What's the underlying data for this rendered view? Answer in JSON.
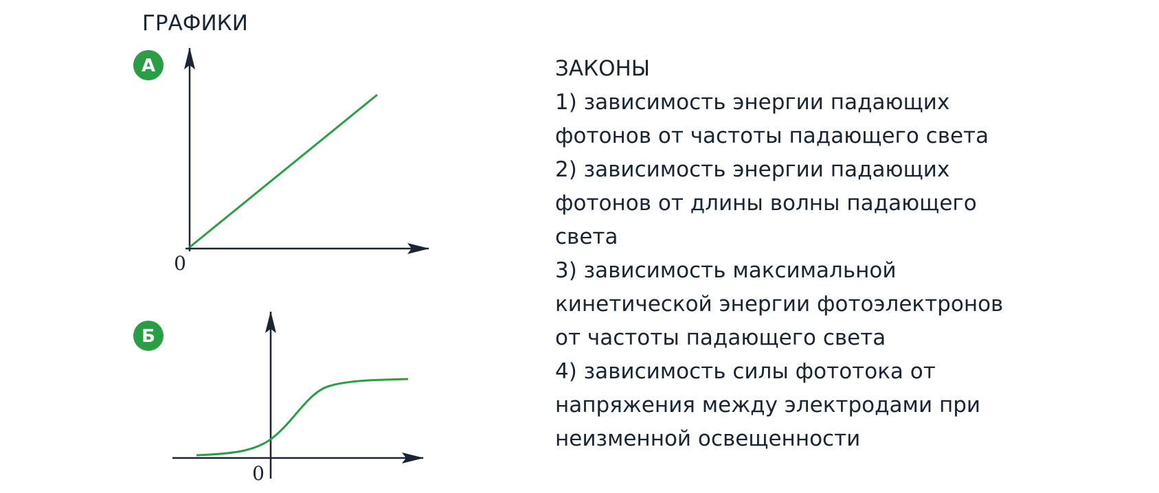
{
  "graphs": {
    "title": "ГРАФИКИ",
    "items": [
      {
        "label": "А",
        "origin": "0"
      },
      {
        "label": "Б",
        "origin": "0"
      }
    ]
  },
  "laws": {
    "title": "ЗАКОНЫ",
    "items": [
      {
        "lines": [
          "1) зависимость энергии падающих",
          "фотонов от частоты падающего света"
        ]
      },
      {
        "lines": [
          "2) зависимость энергии падающих",
          "фотонов от длины волны падающего",
          "света"
        ]
      },
      {
        "lines": [
          "3) зависимость максимальной",
          "кинетической энергии фотоэлектронов",
          "от частоты падающего света"
        ]
      },
      {
        "lines": [
          "4) зависимость силы фототока от",
          "напряжения между электродами при",
          "неизменной освещенности"
        ]
      }
    ]
  }
}
